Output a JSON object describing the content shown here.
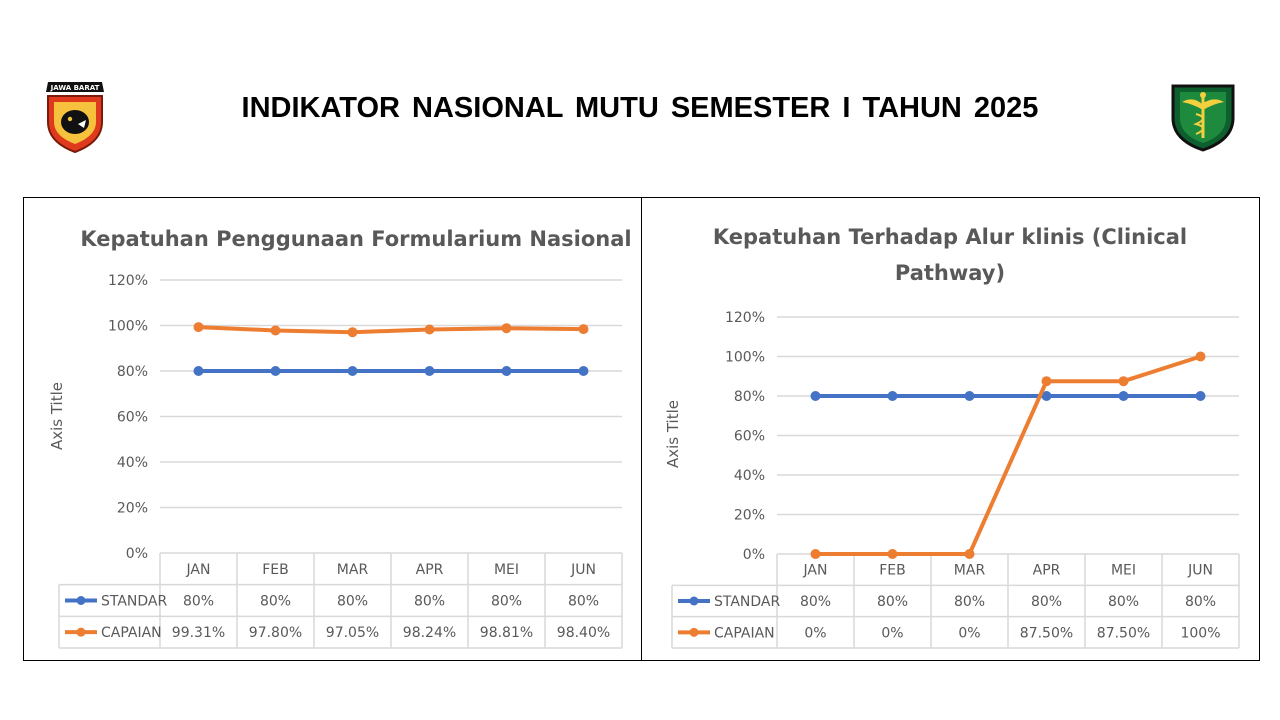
{
  "header": {
    "title": "INDIKATOR NASIONAL MUTU SEMESTER I TAHUN 2025",
    "logo_left": {
      "icon": "police-badge-icon",
      "text": "JAWA BARAT"
    },
    "logo_right": {
      "icon": "medical-caduceus-shield-icon"
    }
  },
  "colors": {
    "standar": "#4472C4",
    "capaian": "#ED7D31",
    "grid": "#D9D9D9",
    "axis_text": "#595959"
  },
  "chart_data": [
    {
      "type": "line",
      "title": "Kepatuhan Penggunaan Formularium Nasional",
      "ylabel": "Axis Title",
      "xlabel": "",
      "categories": [
        "JAN",
        "FEB",
        "MAR",
        "APR",
        "MEI",
        "JUN"
      ],
      "yticks": [
        "0%",
        "20%",
        "40%",
        "60%",
        "80%",
        "100%",
        "120%"
      ],
      "ylim": [
        0,
        120
      ],
      "grid": true,
      "legend": "data-table",
      "series": [
        {
          "name": "STANDAR",
          "values": [
            80,
            80,
            80,
            80,
            80,
            80
          ],
          "labels": [
            "80%",
            "80%",
            "80%",
            "80%",
            "80%",
            "80%"
          ]
        },
        {
          "name": "CAPAIAN",
          "values": [
            99.31,
            97.8,
            97.05,
            98.24,
            98.81,
            98.4
          ],
          "labels": [
            "99.31%",
            "97.80%",
            "97.05%",
            "98.24%",
            "98.81%",
            "98.40%"
          ]
        }
      ]
    },
    {
      "type": "line",
      "title": "Kepatuhan Terhadap Alur klinis (Clinical Pathway)",
      "ylabel": "Axis Title",
      "xlabel": "",
      "categories": [
        "JAN",
        "FEB",
        "MAR",
        "APR",
        "MEI",
        "JUN"
      ],
      "yticks": [
        "0%",
        "20%",
        "40%",
        "60%",
        "80%",
        "100%",
        "120%"
      ],
      "ylim": [
        0,
        120
      ],
      "grid": true,
      "legend": "data-table",
      "series": [
        {
          "name": "STANDAR",
          "values": [
            80,
            80,
            80,
            80,
            80,
            80
          ],
          "labels": [
            "80%",
            "80%",
            "80%",
            "80%",
            "80%",
            "80%"
          ]
        },
        {
          "name": "CAPAIAN",
          "values": [
            0,
            0,
            0,
            87.5,
            87.5,
            100
          ],
          "labels": [
            "0%",
            "0%",
            "0%",
            "87.50%",
            "87.50%",
            "100%"
          ]
        }
      ]
    }
  ]
}
